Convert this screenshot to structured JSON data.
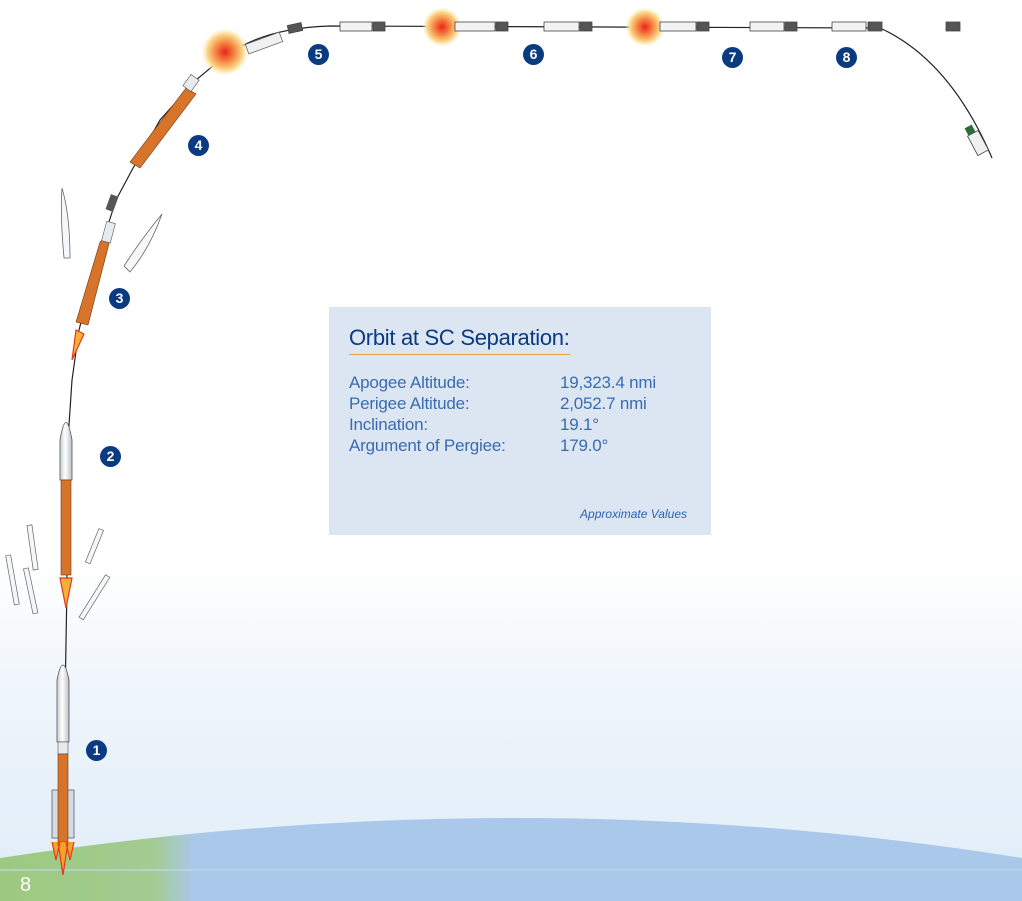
{
  "stage_markers": [
    {
      "id": "1",
      "label": "1"
    },
    {
      "id": "2",
      "label": "2"
    },
    {
      "id": "3",
      "label": "3"
    },
    {
      "id": "4",
      "label": "4"
    },
    {
      "id": "5",
      "label": "5"
    },
    {
      "id": "6",
      "label": "6"
    },
    {
      "id": "7",
      "label": "7"
    },
    {
      "id": "8",
      "label": "8"
    }
  ],
  "orbit_panel": {
    "title": "Orbit at SC Separation:",
    "rows": [
      {
        "label": "Apogee Altitude:",
        "value": "19,323.4 nmi"
      },
      {
        "label": "Perigee Altitude:",
        "value": "2,052.7 nmi"
      },
      {
        "label": "Inclination:",
        "value": "19.1°"
      },
      {
        "label": "Argument of Pergiee:",
        "value": "179.0°"
      }
    ],
    "note": "Approximate Values"
  },
  "page_number": "8",
  "colors": {
    "marker": "#0a3b80",
    "panel_bg": "#dce6f2",
    "title": "#0b3a80",
    "text": "#3a6bb0",
    "underline": "#e3a43a",
    "rocket_body": "#d8742a",
    "earth_blue": "#a9c8ea",
    "earth_green": "#9cc97e"
  }
}
